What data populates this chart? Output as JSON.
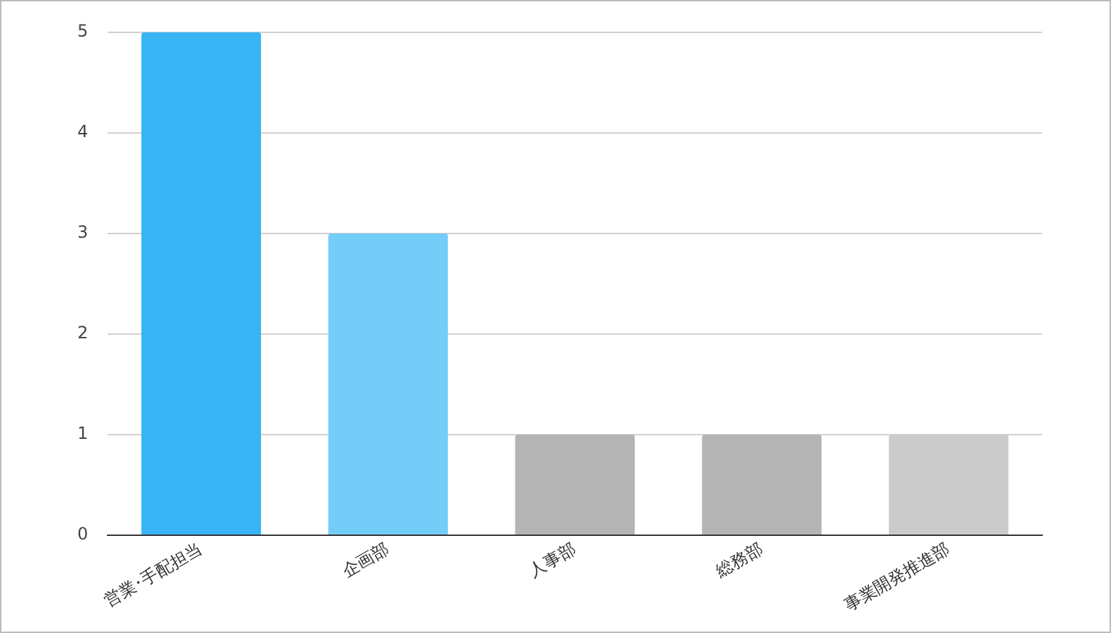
{
  "chart_data": {
    "type": "bar",
    "categories": [
      "営業･手配担当",
      "企画部",
      "人事部",
      "総務部",
      "事業開発推進部"
    ],
    "values": [
      5,
      3,
      1,
      1,
      1
    ],
    "colors": [
      "#38b3f3",
      "#74cdf9",
      "#b4b4b4",
      "#b4b4b4",
      "#cbcbcb"
    ],
    "ylim": [
      0,
      5
    ],
    "yticks": [
      0,
      1,
      2,
      3,
      4,
      5
    ],
    "grid": "y",
    "legend": false
  }
}
